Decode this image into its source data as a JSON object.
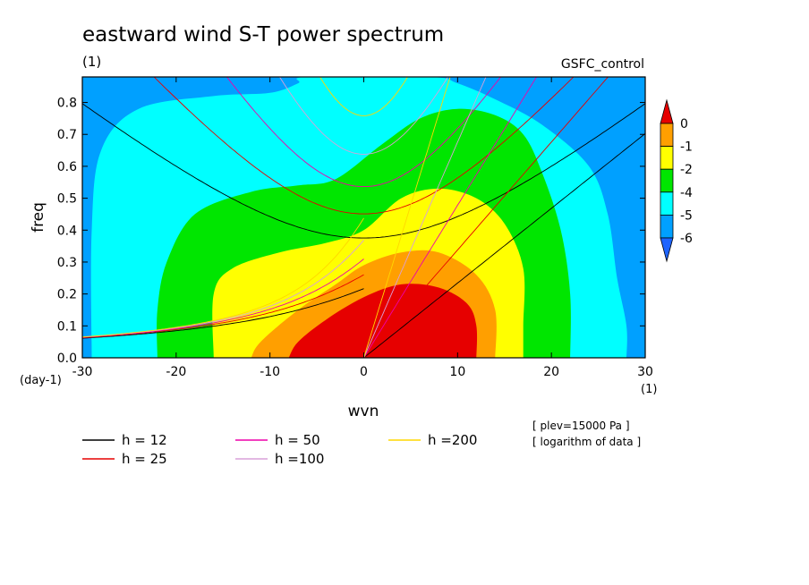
{
  "chart_data": {
    "type": "heatmap",
    "title": "eastward wind S-T power spectrum",
    "subtitle_left": "(1)",
    "subtitle_right": "GSFC_control",
    "xlabel": "wvn",
    "ylabel": "freq",
    "x_unit": "(1)",
    "y_unit": "(day-1)",
    "xlim": [
      -30,
      30
    ],
    "ylim": [
      0,
      0.88
    ],
    "x_ticks": [
      -30,
      -20,
      -10,
      0,
      10,
      20,
      30
    ],
    "x_tick_labels": [
      "-30",
      "-20",
      "-10",
      "0",
      "10",
      "20",
      "30"
    ],
    "y_ticks": [
      0.0,
      0.1,
      0.2,
      0.3,
      0.4,
      0.5,
      0.6,
      0.7,
      0.8
    ],
    "y_tick_labels": [
      "0.0",
      "0.1",
      "0.2",
      "0.3",
      "0.4",
      "0.5",
      "0.6",
      "0.7",
      "0.8"
    ],
    "colorbar": {
      "levels": [
        0,
        -1,
        -2,
        -4,
        -5,
        -6
      ],
      "level_labels": [
        "0",
        "-1",
        "-2",
        "-4",
        "-5",
        "-6"
      ],
      "colors": [
        "#e60000",
        "#ff9f00",
        "#ffff00",
        "#00e600",
        "#00ffff",
        "#00a0ff",
        "#1e64ff"
      ]
    },
    "annotations": [
      "[ plev=15000 Pa ]",
      "[ logarithm of data ]"
    ],
    "contour_fill": [
      {
        "level": "-6",
        "color": "#00a0ff",
        "points": [
          [
            -30,
            0
          ],
          [
            -30,
            0.88
          ],
          [
            30,
            0.88
          ],
          [
            30,
            0
          ]
        ]
      },
      {
        "level": "-5",
        "color": "#00ffff",
        "points": [
          [
            -29,
            0
          ],
          [
            -29,
            0.4
          ],
          [
            -28,
            0.65
          ],
          [
            -24,
            0.78
          ],
          [
            -16,
            0.82
          ],
          [
            -10,
            0.83
          ],
          [
            -7,
            0.86
          ],
          [
            -6,
            0.88
          ],
          [
            7,
            0.88
          ],
          [
            10,
            0.86
          ],
          [
            14,
            0.81
          ],
          [
            19,
            0.73
          ],
          [
            24,
            0.6
          ],
          [
            26,
            0.45
          ],
          [
            27,
            0.25
          ],
          [
            28,
            0.1
          ],
          [
            28,
            0
          ]
        ]
      },
      {
        "level": "-4",
        "color": "#00e600",
        "points": [
          [
            -22,
            0
          ],
          [
            -22,
            0.15
          ],
          [
            -21,
            0.3
          ],
          [
            -18,
            0.45
          ],
          [
            -12,
            0.52
          ],
          [
            -7,
            0.54
          ],
          [
            -3,
            0.56
          ],
          [
            2,
            0.67
          ],
          [
            6,
            0.75
          ],
          [
            10,
            0.78
          ],
          [
            14,
            0.76
          ],
          [
            17,
            0.7
          ],
          [
            19,
            0.58
          ],
          [
            21,
            0.4
          ],
          [
            22,
            0.2
          ],
          [
            22,
            0
          ]
        ]
      },
      {
        "level": "-2",
        "color": "#ffff00",
        "points": [
          [
            -16,
            0
          ],
          [
            -16,
            0.2
          ],
          [
            -14,
            0.28
          ],
          [
            -9,
            0.33
          ],
          [
            -4,
            0.36
          ],
          [
            0,
            0.4
          ],
          [
            4,
            0.5
          ],
          [
            8,
            0.53
          ],
          [
            12,
            0.5
          ],
          [
            15,
            0.42
          ],
          [
            17,
            0.28
          ],
          [
            17,
            0.1
          ],
          [
            17,
            0
          ]
        ]
      },
      {
        "level": "-1",
        "color": "#ff9f00",
        "points": [
          [
            -12,
            0
          ],
          [
            -11,
            0.05
          ],
          [
            -7,
            0.15
          ],
          [
            -3,
            0.23
          ],
          [
            0,
            0.29
          ],
          [
            4,
            0.33
          ],
          [
            8,
            0.33
          ],
          [
            12,
            0.26
          ],
          [
            14,
            0.15
          ],
          [
            14,
            0
          ]
        ]
      },
      {
        "level": "0",
        "color": "#e60000",
        "points": [
          [
            -8,
            0
          ],
          [
            -7,
            0.05
          ],
          [
            -4,
            0.12
          ],
          [
            0,
            0.19
          ],
          [
            4,
            0.23
          ],
          [
            8,
            0.22
          ],
          [
            11,
            0.17
          ],
          [
            12,
            0.1
          ],
          [
            12,
            0
          ]
        ]
      }
    ],
    "dispersion_series": [
      {
        "name": "h = 12",
        "color": "#000000",
        "equivalent_depth_m": 12
      },
      {
        "name": "h = 25",
        "color": "#e60000",
        "equivalent_depth_m": 25
      },
      {
        "name": "h = 50",
        "color": "#ee00aa",
        "equivalent_depth_m": 50
      },
      {
        "name": "h =100",
        "color": "#d9a0d9",
        "equivalent_depth_m": 100
      },
      {
        "name": "h =200",
        "color": "#ffd700",
        "equivalent_depth_m": 200
      }
    ],
    "legend_placement": "bottom"
  }
}
